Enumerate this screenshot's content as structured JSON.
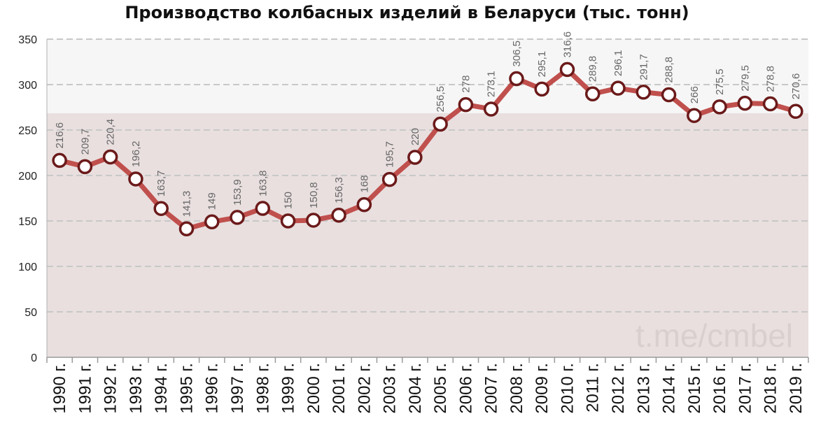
{
  "chart_data": {
    "type": "line",
    "title": "Производство колбасных изделий в Беларуси (тыс. тонн)",
    "categories": [
      "1990 г.",
      "1991 г.",
      "1992 г.",
      "1993 г.",
      "1994 г.",
      "1995 г.",
      "1996 г.",
      "1997 г.",
      "1998 г.",
      "1999 г.",
      "2000 г.",
      "2001 г.",
      "2002 г.",
      "2003 г.",
      "2004 г.",
      "2005 г.",
      "2006 г.",
      "2007 г.",
      "2008 г.",
      "2009 г.",
      "2010 г.",
      "2011 г.",
      "2012 г.",
      "2013 г.",
      "2014 г.",
      "2015 г.",
      "2016 г.",
      "2017 г.",
      "2018 г.",
      "2019 г."
    ],
    "values": [
      216.6,
      209.7,
      220.4,
      196.2,
      163.7,
      141.3,
      149,
      153.9,
      163.8,
      150,
      150.8,
      156.3,
      168,
      195.7,
      220,
      256.5,
      278,
      273.1,
      306.5,
      295.1,
      316.6,
      289.8,
      296.1,
      291.7,
      288.8,
      266,
      275.5,
      279.5,
      278.8,
      270.6
    ],
    "value_labels": [
      "216,6",
      "209,7",
      "220,4",
      "196,2",
      "163,7",
      "141,3",
      "149",
      "153,9",
      "163,8",
      "150",
      "150,8",
      "156,3",
      "168",
      "195,7",
      "220",
      "256,5",
      "278",
      "273,1",
      "306,5",
      "295,1",
      "316,6",
      "289,8",
      "296,1",
      "291,7",
      "288,8",
      "266",
      "275,5",
      "279,5",
      "278,8",
      "270,6"
    ],
    "yticks": [
      0,
      50,
      100,
      150,
      200,
      250,
      300,
      350
    ],
    "ylim": [
      0,
      350
    ],
    "grid": true,
    "area_fill_level": 268.5,
    "watermark": "t.me/cmbel",
    "colors": {
      "line": "#c0504d",
      "marker_edge": "#6b1a1a",
      "marker_fill": "#ffffff",
      "area": "#e9dfdf",
      "plot_bg": "#f6f6f6",
      "grid": "#c8c8c8"
    }
  }
}
